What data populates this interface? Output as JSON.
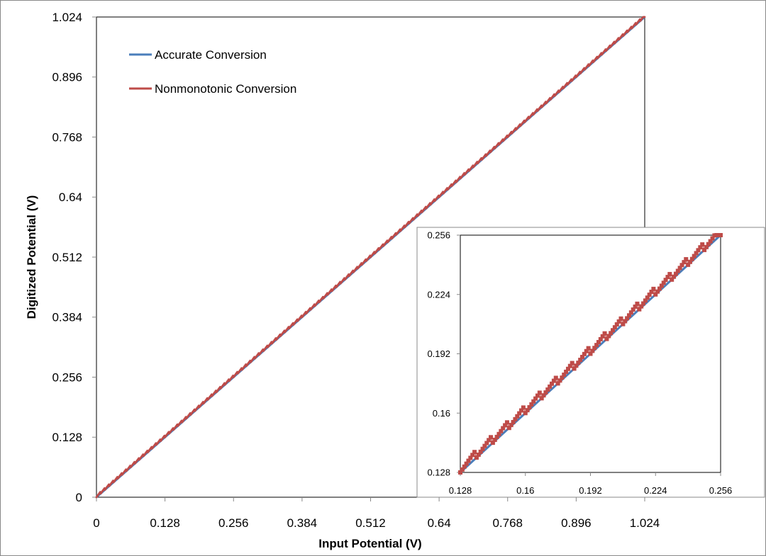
{
  "chart_data": [
    {
      "type": "line",
      "title": "",
      "xlabel": "Input Potential (V)",
      "ylabel": "Digitized Potential (V)",
      "xlim": [
        0,
        1.024
      ],
      "ylim": [
        0,
        1.024
      ],
      "xticks": [
        "0",
        "0.128",
        "0.256",
        "0.384",
        "0.512",
        "0.64",
        "0.768",
        "0.896",
        "1.024"
      ],
      "yticks": [
        "0",
        "0.128",
        "0.256",
        "0.384",
        "0.512",
        "0.64",
        "0.768",
        "0.896",
        "1.024"
      ],
      "legend_position": "top-left",
      "series": [
        {
          "name": "Accurate Conversion",
          "color": "#4a7ebb",
          "rule": "y = x",
          "x_step": 0.001
        },
        {
          "name": "Nonmonotonic Conversion",
          "color": "#be4b48",
          "rule": "y = x + sawtooth offset",
          "x_step": 0.001,
          "sawtooth_period": 0.008,
          "sawtooth_max_offset": 0.004
        }
      ]
    },
    {
      "type": "line",
      "title": "inset",
      "xlim": [
        0.128,
        0.256
      ],
      "ylim": [
        0.128,
        0.256
      ],
      "xticks": [
        "0.128",
        "0.16",
        "0.192",
        "0.224",
        "0.256"
      ],
      "yticks": [
        "0.128",
        "0.16",
        "0.192",
        "0.224",
        "0.256"
      ],
      "series": [
        {
          "name": "Accurate Conversion",
          "color": "#4a7ebb"
        },
        {
          "name": "Nonmonotonic Conversion",
          "color": "#be4b48"
        }
      ]
    }
  ]
}
